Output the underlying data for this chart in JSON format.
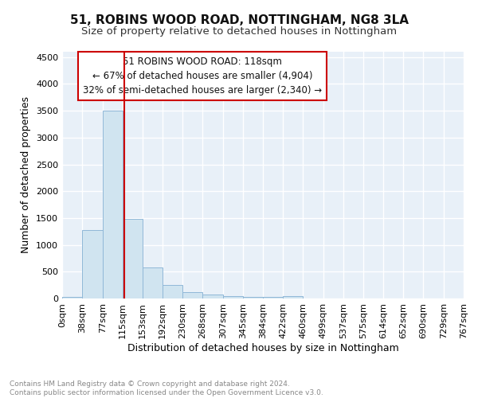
{
  "title": "51, ROBINS WOOD ROAD, NOTTINGHAM, NG8 3LA",
  "subtitle": "Size of property relative to detached houses in Nottingham",
  "xlabel": "Distribution of detached houses by size in Nottingham",
  "ylabel": "Number of detached properties",
  "bar_edges": [
    0,
    38,
    77,
    115,
    153,
    192,
    230,
    268,
    307,
    345,
    384,
    422,
    460,
    499,
    537,
    575,
    614,
    652,
    690,
    729,
    767
  ],
  "bar_heights": [
    30,
    1280,
    3500,
    1480,
    580,
    245,
    120,
    75,
    40,
    25,
    30,
    40,
    0,
    0,
    0,
    0,
    0,
    0,
    0,
    0
  ],
  "bar_color": "#d0e4f0",
  "bar_edgecolor": "#90b8d8",
  "vline_x": 118,
  "vline_color": "#cc0000",
  "ylim": [
    0,
    4600
  ],
  "yticks": [
    0,
    500,
    1000,
    1500,
    2000,
    2500,
    3000,
    3500,
    4000,
    4500
  ],
  "xtick_labels": [
    "0sqm",
    "38sqm",
    "77sqm",
    "115sqm",
    "153sqm",
    "192sqm",
    "230sqm",
    "268sqm",
    "307sqm",
    "345sqm",
    "384sqm",
    "422sqm",
    "460sqm",
    "499sqm",
    "537sqm",
    "575sqm",
    "614sqm",
    "652sqm",
    "690sqm",
    "729sqm",
    "767sqm"
  ],
  "annotation_line1": "51 ROBINS WOOD ROAD: 118sqm",
  "annotation_line2": "← 67% of detached houses are smaller (4,904)",
  "annotation_line3": "32% of semi-detached houses are larger (2,340) →",
  "annotation_box_color": "#cc0000",
  "bg_color": "#e8f0f8",
  "grid_color": "#ffffff",
  "footer_text": "Contains HM Land Registry data © Crown copyright and database right 2024.\nContains public sector information licensed under the Open Government Licence v3.0.",
  "title_fontsize": 11,
  "subtitle_fontsize": 9.5,
  "ylabel_fontsize": 9,
  "xlabel_fontsize": 9,
  "tick_fontsize": 8,
  "annotation_fontsize": 8.5,
  "footer_fontsize": 6.5
}
